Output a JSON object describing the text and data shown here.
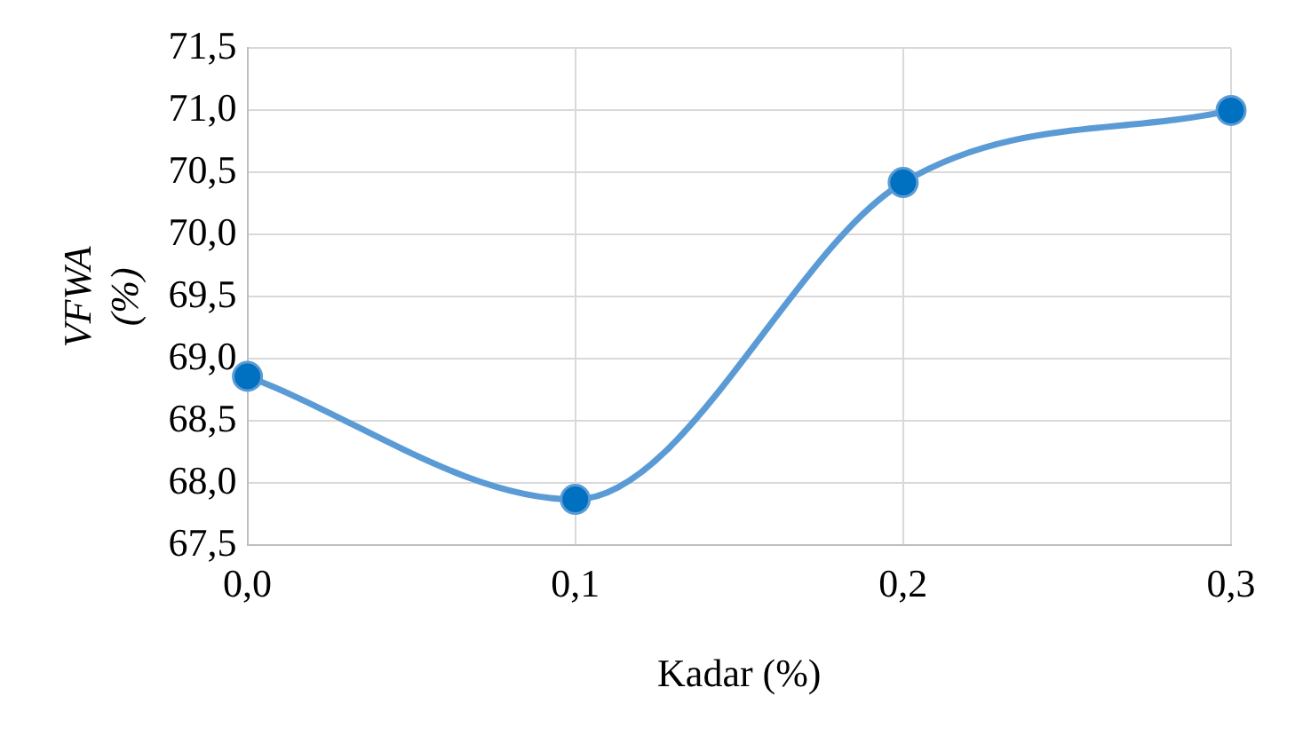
{
  "chart_data": {
    "type": "line",
    "xlabel": "Kadar (%)",
    "ylabel": "VFWA\n(%)",
    "x": [
      0,
      0.1,
      0.2,
      0.3
    ],
    "series": [
      {
        "color": "#5b9bd5",
        "values": [
          68.86,
          67.87,
          70.42,
          71.0
        ]
      }
    ],
    "xlim": [
      0,
      0.3
    ],
    "xticks": [
      {
        "value": 0,
        "label": "0,0"
      },
      {
        "value": 0.1,
        "label": "0,1"
      },
      {
        "value": 0.2,
        "label": "0,2"
      },
      {
        "value": 0.3,
        "label": "0,3"
      }
    ],
    "ylim": [
      67.5,
      71.5
    ],
    "yticks": [
      {
        "value": 67.5,
        "label": "67,5"
      },
      {
        "value": 68,
        "label": "68,0"
      },
      {
        "value": 68.5,
        "label": "68,5"
      },
      {
        "value": 69,
        "label": "69,0"
      },
      {
        "value": 69.5,
        "label": "69,5"
      },
      {
        "value": 70,
        "label": "70,0"
      },
      {
        "value": 70.5,
        "label": "70,5"
      },
      {
        "value": 71,
        "label": "71,0"
      },
      {
        "value": 71.5,
        "label": "71,5"
      }
    ],
    "grid": true,
    "marker": "circle",
    "legend": false
  }
}
